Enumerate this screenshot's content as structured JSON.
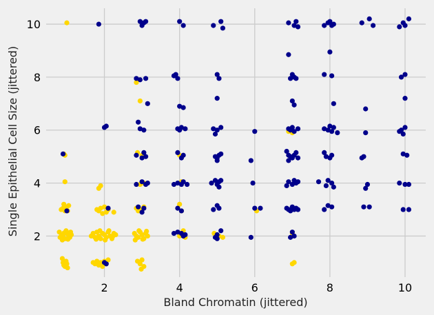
{
  "chart_data": {
    "type": "scatter",
    "title": "",
    "xlabel": "Bland Chromatin (jittered)",
    "ylabel": "Single Epithelial Cell Size (jittered)",
    "xlim": [
      0.45,
      10.55
    ],
    "ylim": [
      0.45,
      10.6
    ],
    "xticks": [
      2,
      4,
      6,
      8,
      10
    ],
    "yticks": [
      2,
      4,
      6,
      8,
      10
    ],
    "grid": true,
    "legend": "none",
    "colors": {
      "background": "#f0f0f0",
      "grid": "#cbcbcb"
    },
    "series": [
      {
        "color": "#ffd700",
        "points": [
          [
            1.0,
            10.05
          ],
          [
            0.95,
            5.05
          ],
          [
            0.92,
            5.1
          ],
          [
            0.95,
            4.05
          ],
          [
            0.85,
            3.0
          ],
          [
            0.9,
            3.05
          ],
          [
            0.95,
            2.95
          ],
          [
            1.0,
            3.1
          ],
          [
            1.05,
            3.15
          ],
          [
            0.92,
            3.2
          ],
          [
            1.02,
            2.95
          ],
          [
            0.8,
            2.15
          ],
          [
            0.85,
            2.0
          ],
          [
            0.9,
            2.05
          ],
          [
            0.95,
            1.9
          ],
          [
            1.0,
            2.1
          ],
          [
            1.05,
            2.0
          ],
          [
            1.1,
            2.15
          ],
          [
            0.88,
            1.85
          ],
          [
            0.98,
            2.2
          ],
          [
            1.08,
            1.95
          ],
          [
            0.82,
            1.95
          ],
          [
            0.93,
            2.12
          ],
          [
            1.03,
            1.88
          ],
          [
            1.12,
            2.05
          ],
          [
            0.9,
            1.0
          ],
          [
            0.95,
            0.85
          ],
          [
            1.0,
            0.95
          ],
          [
            0.88,
            1.15
          ],
          [
            0.92,
            0.9
          ],
          [
            1.02,
            0.8
          ],
          [
            0.98,
            1.05
          ],
          [
            1.85,
            3.8
          ],
          [
            1.9,
            3.9
          ],
          [
            1.8,
            3.0
          ],
          [
            1.85,
            2.95
          ],
          [
            1.9,
            3.05
          ],
          [
            1.95,
            2.85
          ],
          [
            2.0,
            3.1
          ],
          [
            2.05,
            2.9
          ],
          [
            2.1,
            3.0
          ],
          [
            2.25,
            2.9
          ],
          [
            1.65,
            2.0
          ],
          [
            1.7,
            2.1
          ],
          [
            1.75,
            1.95
          ],
          [
            1.8,
            2.15
          ],
          [
            1.85,
            2.0
          ],
          [
            1.9,
            1.9
          ],
          [
            1.95,
            2.1
          ],
          [
            2.0,
            2.05
          ],
          [
            2.05,
            1.95
          ],
          [
            2.1,
            2.15
          ],
          [
            2.15,
            2.0
          ],
          [
            2.2,
            1.9
          ],
          [
            2.25,
            2.1
          ],
          [
            2.3,
            2.05
          ],
          [
            1.78,
            1.88
          ],
          [
            1.88,
            2.2
          ],
          [
            2.02,
            1.85
          ],
          [
            2.12,
            2.2
          ],
          [
            2.22,
            1.98
          ],
          [
            1.7,
            1.0
          ],
          [
            1.75,
            0.95
          ],
          [
            1.8,
            1.05
          ],
          [
            1.85,
            0.9
          ],
          [
            1.9,
            1.0
          ],
          [
            1.95,
            0.85
          ],
          [
            2.0,
            1.05
          ],
          [
            2.05,
            0.95
          ],
          [
            2.1,
            1.1
          ],
          [
            2.85,
            7.8
          ],
          [
            2.95,
            7.1
          ],
          [
            2.88,
            5.15
          ],
          [
            3.0,
            5.05
          ],
          [
            2.95,
            3.95
          ],
          [
            3.05,
            4.0
          ],
          [
            2.85,
            3.05
          ],
          [
            2.9,
            2.95
          ],
          [
            3.0,
            3.0
          ],
          [
            3.05,
            3.1
          ],
          [
            2.8,
            2.1
          ],
          [
            2.85,
            2.0
          ],
          [
            2.9,
            1.95
          ],
          [
            2.95,
            2.15
          ],
          [
            3.0,
            2.05
          ],
          [
            3.05,
            1.9
          ],
          [
            3.1,
            2.1
          ],
          [
            3.15,
            2.0
          ],
          [
            2.82,
            1.85
          ],
          [
            2.92,
            2.2
          ],
          [
            3.02,
            1.88
          ],
          [
            3.12,
            2.18
          ],
          [
            2.88,
            1.05
          ],
          [
            2.95,
            0.95
          ],
          [
            3.0,
            1.1
          ],
          [
            3.05,
            0.85
          ],
          [
            2.98,
            0.75
          ],
          [
            4.0,
            5.05
          ],
          [
            4.05,
            4.05
          ],
          [
            4.0,
            3.2
          ],
          [
            4.05,
            2.95
          ],
          [
            4.1,
            2.2
          ],
          [
            4.0,
            2.0
          ],
          [
            4.15,
            1.95
          ],
          [
            4.92,
            2.1
          ],
          [
            4.98,
            1.95
          ],
          [
            5.05,
            2.0
          ],
          [
            5.15,
            1.95
          ],
          [
            6.05,
            2.95
          ],
          [
            6.9,
            5.95
          ],
          [
            7.0,
            5.9
          ],
          [
            7.0,
            2.1
          ],
          [
            7.05,
            1.0
          ],
          [
            7.0,
            0.95
          ]
        ]
      },
      {
        "color": "#00008b",
        "points": [
          [
            1.85,
            10.0
          ],
          [
            2.95,
            10.1
          ],
          [
            3.05,
            10.05
          ],
          [
            3.0,
            9.95
          ],
          [
            3.1,
            10.1
          ],
          [
            4.0,
            10.1
          ],
          [
            4.1,
            9.95
          ],
          [
            4.9,
            9.95
          ],
          [
            5.1,
            10.1
          ],
          [
            5.15,
            9.85
          ],
          [
            6.9,
            10.05
          ],
          [
            7.05,
            9.95
          ],
          [
            7.1,
            10.1
          ],
          [
            7.15,
            9.9
          ],
          [
            7.85,
            9.95
          ],
          [
            7.95,
            10.05
          ],
          [
            8.0,
            10.1
          ],
          [
            8.05,
            9.95
          ],
          [
            8.1,
            10.0
          ],
          [
            8.85,
            10.05
          ],
          [
            9.05,
            10.2
          ],
          [
            9.15,
            9.95
          ],
          [
            9.85,
            9.9
          ],
          [
            9.95,
            10.05
          ],
          [
            10.0,
            9.95
          ],
          [
            10.1,
            10.2
          ],
          [
            2.85,
            7.95
          ],
          [
            2.95,
            7.9
          ],
          [
            3.1,
            7.95
          ],
          [
            3.15,
            7.0
          ],
          [
            3.85,
            8.05
          ],
          [
            3.9,
            8.1
          ],
          [
            3.95,
            7.95
          ],
          [
            5.0,
            8.1
          ],
          [
            5.05,
            7.95
          ],
          [
            5.0,
            7.2
          ],
          [
            6.9,
            8.85
          ],
          [
            6.95,
            7.95
          ],
          [
            7.0,
            8.1
          ],
          [
            7.05,
            8.0
          ],
          [
            7.1,
            7.95
          ],
          [
            7.0,
            7.1
          ],
          [
            7.05,
            6.95
          ],
          [
            7.85,
            8.1
          ],
          [
            8.0,
            8.95
          ],
          [
            8.05,
            8.05
          ],
          [
            8.1,
            7.0
          ],
          [
            9.9,
            8.0
          ],
          [
            10.0,
            8.1
          ],
          [
            10.0,
            7.2
          ],
          [
            2.0,
            6.1
          ],
          [
            2.05,
            6.15
          ],
          [
            2.9,
            6.3
          ],
          [
            2.95,
            6.05
          ],
          [
            3.05,
            6.0
          ],
          [
            3.95,
            6.05
          ],
          [
            4.0,
            6.0
          ],
          [
            4.05,
            6.1
          ],
          [
            4.15,
            6.05
          ],
          [
            4.0,
            6.9
          ],
          [
            4.1,
            6.85
          ],
          [
            4.9,
            6.05
          ],
          [
            4.95,
            5.85
          ],
          [
            5.1,
            6.1
          ],
          [
            5.0,
            6.0
          ],
          [
            6.0,
            5.95
          ],
          [
            6.9,
            6.05
          ],
          [
            6.95,
            6.0
          ],
          [
            7.0,
            6.1
          ],
          [
            7.05,
            5.95
          ],
          [
            7.15,
            6.05
          ],
          [
            7.85,
            6.05
          ],
          [
            7.95,
            6.0
          ],
          [
            8.0,
            6.15
          ],
          [
            8.05,
            5.95
          ],
          [
            8.1,
            6.1
          ],
          [
            8.2,
            5.9
          ],
          [
            8.95,
            6.8
          ],
          [
            8.95,
            5.9
          ],
          [
            9.85,
            5.95
          ],
          [
            9.9,
            6.0
          ],
          [
            9.95,
            5.85
          ],
          [
            10.0,
            6.1
          ],
          [
            0.9,
            5.1
          ],
          [
            2.85,
            5.05
          ],
          [
            3.0,
            4.95
          ],
          [
            3.05,
            5.15
          ],
          [
            3.1,
            5.0
          ],
          [
            3.95,
            5.15
          ],
          [
            4.1,
            5.05
          ],
          [
            4.05,
            4.95
          ],
          [
            4.95,
            5.0
          ],
          [
            5.05,
            5.05
          ],
          [
            5.0,
            4.85
          ],
          [
            5.1,
            5.1
          ],
          [
            5.0,
            4.95
          ],
          [
            5.9,
            4.85
          ],
          [
            6.85,
            5.2
          ],
          [
            6.9,
            4.85
          ],
          [
            6.95,
            5.0
          ],
          [
            7.0,
            4.95
          ],
          [
            7.05,
            5.05
          ],
          [
            7.1,
            5.15
          ],
          [
            7.15,
            4.95
          ],
          [
            6.9,
            5.05
          ],
          [
            7.85,
            5.15
          ],
          [
            7.9,
            5.0
          ],
          [
            8.0,
            4.95
          ],
          [
            8.05,
            5.05
          ],
          [
            8.85,
            4.95
          ],
          [
            8.9,
            5.0
          ],
          [
            9.95,
            5.1
          ],
          [
            10.05,
            5.05
          ],
          [
            2.85,
            3.95
          ],
          [
            3.0,
            4.05
          ],
          [
            3.1,
            3.95
          ],
          [
            3.15,
            4.0
          ],
          [
            3.85,
            3.95
          ],
          [
            3.95,
            4.0
          ],
          [
            4.05,
            3.95
          ],
          [
            4.1,
            4.05
          ],
          [
            4.2,
            3.95
          ],
          [
            4.85,
            4.0
          ],
          [
            4.95,
            4.1
          ],
          [
            5.0,
            3.95
          ],
          [
            5.05,
            4.05
          ],
          [
            5.1,
            4.1
          ],
          [
            5.05,
            3.85
          ],
          [
            5.95,
            4.0
          ],
          [
            6.9,
            4.05
          ],
          [
            7.0,
            3.95
          ],
          [
            7.05,
            4.1
          ],
          [
            7.1,
            4.0
          ],
          [
            6.85,
            3.9
          ],
          [
            7.15,
            4.05
          ],
          [
            7.7,
            4.05
          ],
          [
            7.9,
            3.9
          ],
          [
            7.95,
            4.1
          ],
          [
            8.05,
            4.0
          ],
          [
            8.1,
            3.85
          ],
          [
            9.0,
            3.95
          ],
          [
            8.95,
            3.8
          ],
          [
            9.85,
            4.0
          ],
          [
            10.0,
            3.95
          ],
          [
            10.1,
            3.95
          ],
          [
            1.0,
            2.95
          ],
          [
            2.1,
            3.05
          ],
          [
            2.9,
            3.1
          ],
          [
            3.0,
            2.9
          ],
          [
            3.05,
            3.05
          ],
          [
            3.95,
            3.05
          ],
          [
            4.05,
            2.95
          ],
          [
            4.9,
            3.0
          ],
          [
            5.0,
            3.15
          ],
          [
            5.05,
            3.05
          ],
          [
            6.0,
            3.05
          ],
          [
            6.15,
            3.05
          ],
          [
            6.85,
            3.05
          ],
          [
            6.9,
            3.0
          ],
          [
            6.95,
            2.95
          ],
          [
            7.0,
            3.1
          ],
          [
            7.05,
            3.0
          ],
          [
            7.1,
            3.05
          ],
          [
            7.15,
            3.0
          ],
          [
            7.85,
            3.0
          ],
          [
            7.95,
            3.15
          ],
          [
            8.05,
            3.1
          ],
          [
            8.9,
            3.1
          ],
          [
            9.05,
            3.1
          ],
          [
            9.95,
            3.0
          ],
          [
            10.1,
            3.0
          ],
          [
            2.0,
            1.0
          ],
          [
            2.05,
            0.95
          ],
          [
            3.85,
            2.1
          ],
          [
            3.95,
            2.15
          ],
          [
            4.05,
            2.1
          ],
          [
            4.1,
            2.0
          ],
          [
            4.15,
            2.05
          ],
          [
            4.95,
            1.95
          ],
          [
            5.0,
            1.9
          ],
          [
            5.0,
            2.05
          ],
          [
            5.1,
            2.2
          ],
          [
            5.9,
            1.95
          ],
          [
            6.95,
            1.95
          ],
          [
            7.0,
            2.15
          ],
          [
            7.05,
            2.0
          ]
        ]
      }
    ]
  }
}
